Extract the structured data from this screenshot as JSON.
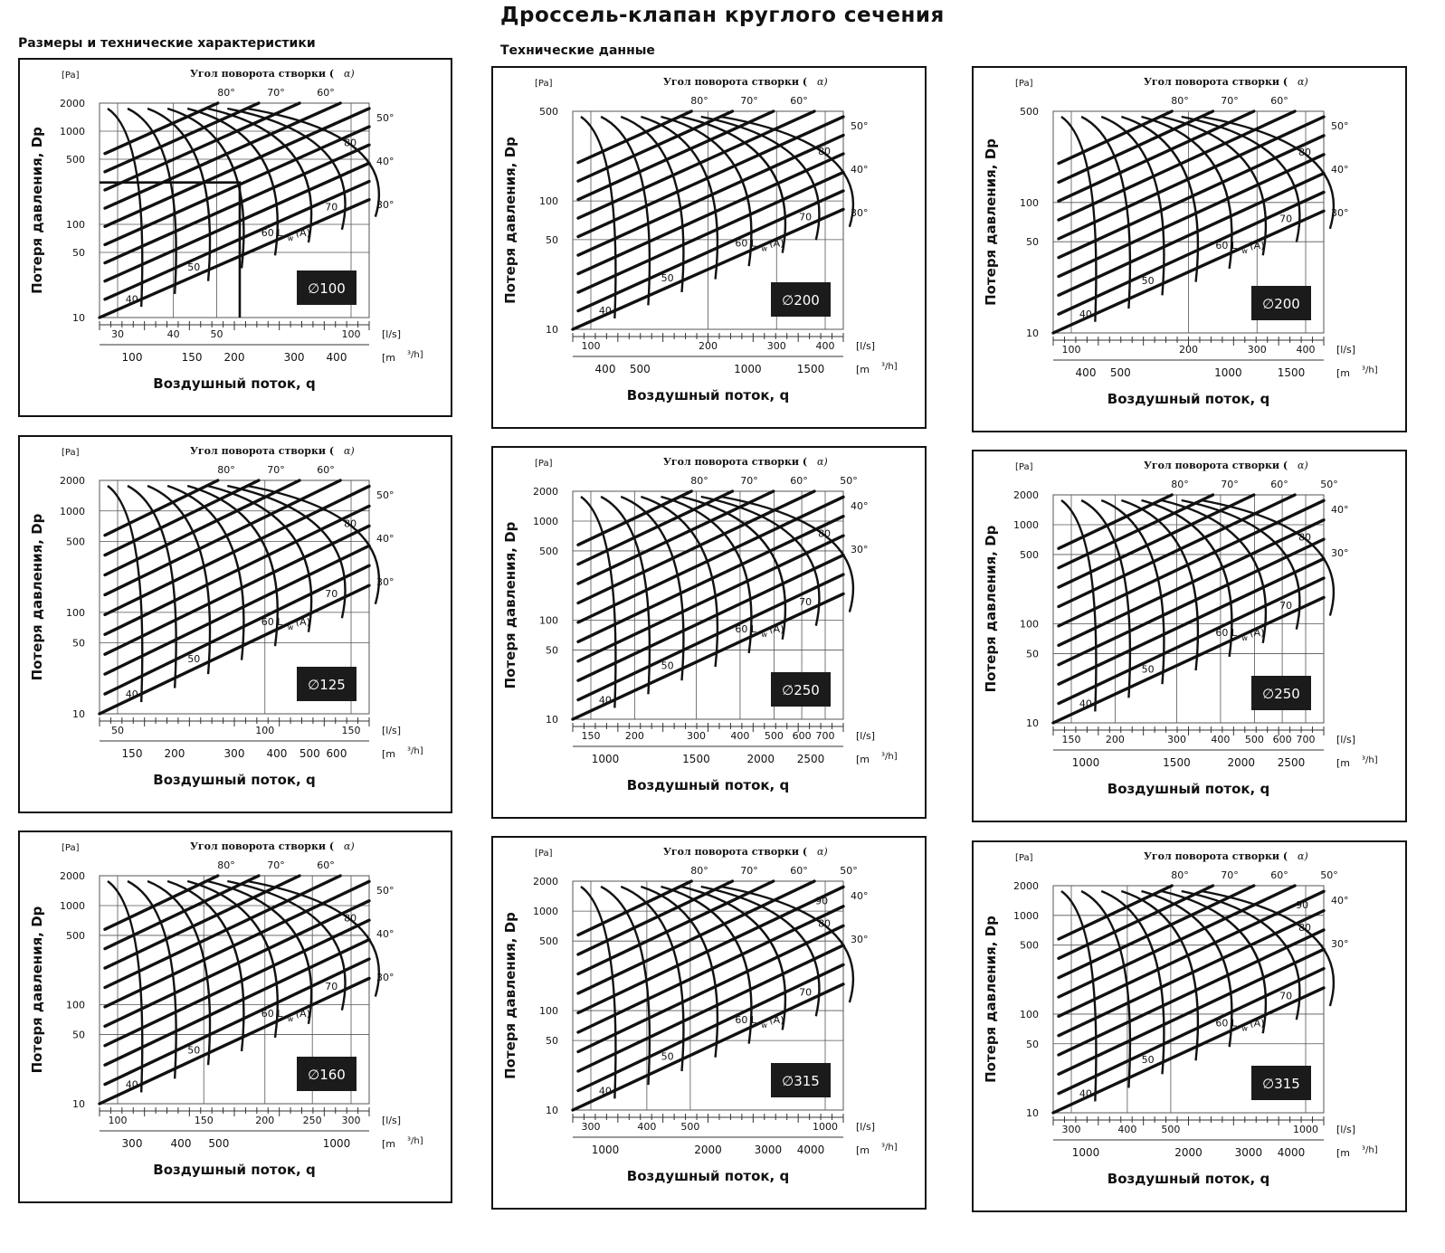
{
  "page": {
    "title": "Дроссель-клапан круглого сечения",
    "subtitle_left": "Размеры и технические характеристики",
    "subtitle_mid": "Технические данные"
  },
  "colors": {
    "curves": "#111111",
    "grid": "#555555",
    "badge_bg": "#1b1b1b",
    "badge_text": "#ffffff"
  },
  "common": {
    "pa_unit": "[Pa]",
    "angle_title": "Угол поворота створки (",
    "angle_symbol": "α)",
    "y_title": "Потеря давления, Dp",
    "x_title": "Воздушный поток, q",
    "ls_unit": "[l/s]",
    "m3h_unit_a": "[m",
    "m3h_unit_b": "³/h]",
    "sound_label": "60 L",
    "sound_sub": "w",
    "sound_suffix": "(A)"
  },
  "chart_data": [
    {
      "type": "line",
      "badge": "∅100",
      "y_axis": {
        "scale": "log",
        "ticks": [
          "10",
          "50",
          "100",
          "500",
          "1000",
          "2000"
        ]
      },
      "x_axis_ls": {
        "scale": "log",
        "ticks": [
          "30",
          "40",
          "50",
          "100"
        ]
      },
      "x_axis_m3h": {
        "ticks": [
          "100",
          "150",
          "200",
          "300",
          "400"
        ]
      },
      "angle_top": [
        "80°",
        "70°",
        "60°"
      ],
      "angle_right": [
        "50°",
        "40°",
        "30°"
      ],
      "sound_labels": [
        "40",
        "50",
        "70",
        "80"
      ],
      "example_path": {
        "x_ls": 60,
        "y_pa": 200
      }
    },
    {
      "type": "line",
      "badge": "∅125",
      "y_axis": {
        "scale": "log",
        "ticks": [
          "10",
          "50",
          "100",
          "500",
          "1000",
          "2000"
        ]
      },
      "x_axis_ls": {
        "scale": "log",
        "ticks": [
          "50",
          "100",
          "150"
        ]
      },
      "x_axis_m3h": {
        "ticks": [
          "150",
          "200",
          "300",
          "400",
          "500",
          "600"
        ]
      },
      "angle_top": [
        "80°",
        "70°",
        "60°"
      ],
      "angle_right": [
        "50°",
        "40°",
        "30°"
      ],
      "sound_labels": [
        "40",
        "50",
        "70",
        "80"
      ]
    },
    {
      "type": "line",
      "badge": "∅160",
      "y_axis": {
        "scale": "log",
        "ticks": [
          "10",
          "50",
          "100",
          "500",
          "1000",
          "2000"
        ]
      },
      "x_axis_ls": {
        "scale": "log",
        "ticks": [
          "100",
          "150",
          "200",
          "250",
          "300"
        ]
      },
      "x_axis_m3h": {
        "ticks": [
          "300",
          "400",
          "500",
          "1000"
        ]
      },
      "angle_top": [
        "80°",
        "70°",
        "60°"
      ],
      "angle_right": [
        "50°",
        "40°",
        "30°"
      ],
      "sound_labels": [
        "40",
        "50",
        "70",
        "80"
      ]
    },
    {
      "type": "line",
      "badge": "∅200",
      "y_axis": {
        "scale": "log",
        "ticks": [
          "10",
          "50",
          "100",
          "500"
        ]
      },
      "x_axis_ls": {
        "scale": "log",
        "ticks": [
          "100",
          "200",
          "300",
          "400"
        ]
      },
      "x_axis_m3h": {
        "ticks": [
          "400",
          "500",
          "1000",
          "1500"
        ]
      },
      "angle_top": [
        "80°",
        "70°",
        "60°"
      ],
      "angle_right": [
        "50°",
        "40°",
        "30°"
      ],
      "sound_labels": [
        "40",
        "50",
        "70",
        "80"
      ]
    },
    {
      "type": "line",
      "badge": "∅250",
      "y_axis": {
        "scale": "log",
        "ticks": [
          "10",
          "50",
          "100",
          "500",
          "1000",
          "2000"
        ]
      },
      "x_axis_ls": {
        "scale": "log",
        "ticks": [
          "150",
          "200",
          "300",
          "400",
          "500",
          "600",
          "700"
        ]
      },
      "x_axis_m3h": {
        "ticks": [
          "1000",
          "1500",
          "2000",
          "2500"
        ]
      },
      "angle_top": [
        "80°",
        "70°",
        "60°",
        "50°"
      ],
      "angle_right": [
        "40°",
        "30°"
      ],
      "sound_labels": [
        "40",
        "50",
        "70",
        "80"
      ]
    },
    {
      "type": "line",
      "badge": "∅315",
      "y_axis": {
        "scale": "log",
        "ticks": [
          "10",
          "50",
          "100",
          "500",
          "1000",
          "2000"
        ]
      },
      "x_axis_ls": {
        "scale": "log",
        "ticks": [
          "300",
          "400",
          "500",
          "1000"
        ]
      },
      "x_axis_m3h": {
        "ticks": [
          "1000",
          "2000",
          "3000",
          "4000"
        ]
      },
      "angle_top": [
        "80°",
        "70°",
        "60°",
        "50°"
      ],
      "angle_right": [
        "40°",
        "30°"
      ],
      "sound_labels": [
        "40",
        "50",
        "70",
        "80",
        "90"
      ]
    }
  ],
  "panels": [
    {
      "chart": 0
    },
    {
      "chart": 1
    },
    {
      "chart": 2
    },
    {
      "chart": 3
    },
    {
      "chart": 4
    },
    {
      "chart": 5
    },
    {
      "chart": 3
    },
    {
      "chart": 4
    },
    {
      "chart": 5
    }
  ]
}
